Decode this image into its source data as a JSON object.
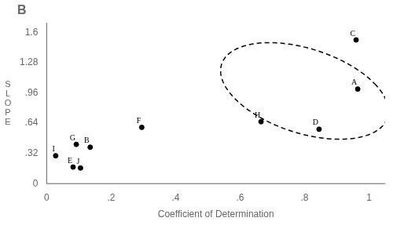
{
  "chart_data": {
    "type": "scatter",
    "title": "B",
    "xlabel": "Coefficient of Determination",
    "ylabel": "S\nL\nO\nP\nE",
    "x": [
      0.965,
      0.135,
      0.96,
      0.845,
      0.082,
      0.295,
      0.092,
      0.665,
      0.028,
      0.105
    ],
    "values": [
      1.0,
      0.385,
      1.52,
      0.575,
      0.175,
      0.595,
      0.415,
      0.655,
      0.295,
      0.165
    ],
    "point_labels": [
      "A",
      "B",
      "C",
      "D",
      "E",
      "F",
      "G",
      "H",
      "I",
      "J"
    ],
    "color": "black",
    "marker": "dot",
    "xlim": [
      0,
      1.05
    ],
    "ylim": [
      0,
      1.7
    ],
    "xticks": [
      0,
      {
        "value": 0.2,
        "label": ".2"
      },
      {
        "value": 0.4,
        "label": ".4"
      },
      {
        "value": 0.6,
        "label": ".6"
      },
      {
        "value": 0.8,
        "label": ".8"
      },
      1
    ],
    "yticks": [
      0,
      {
        "value": 0.32,
        "label": ".32"
      },
      {
        "value": 0.64,
        "label": ".64"
      },
      {
        "value": 0.96,
        "label": ".96"
      },
      1.28,
      1.6
    ],
    "grid": false,
    "ellipse": {
      "center": [
        0.8,
        0.98
      ],
      "width": 0.46,
      "height": 1.05,
      "angle": 15,
      "line_style": "dashed",
      "color": "black"
    }
  }
}
